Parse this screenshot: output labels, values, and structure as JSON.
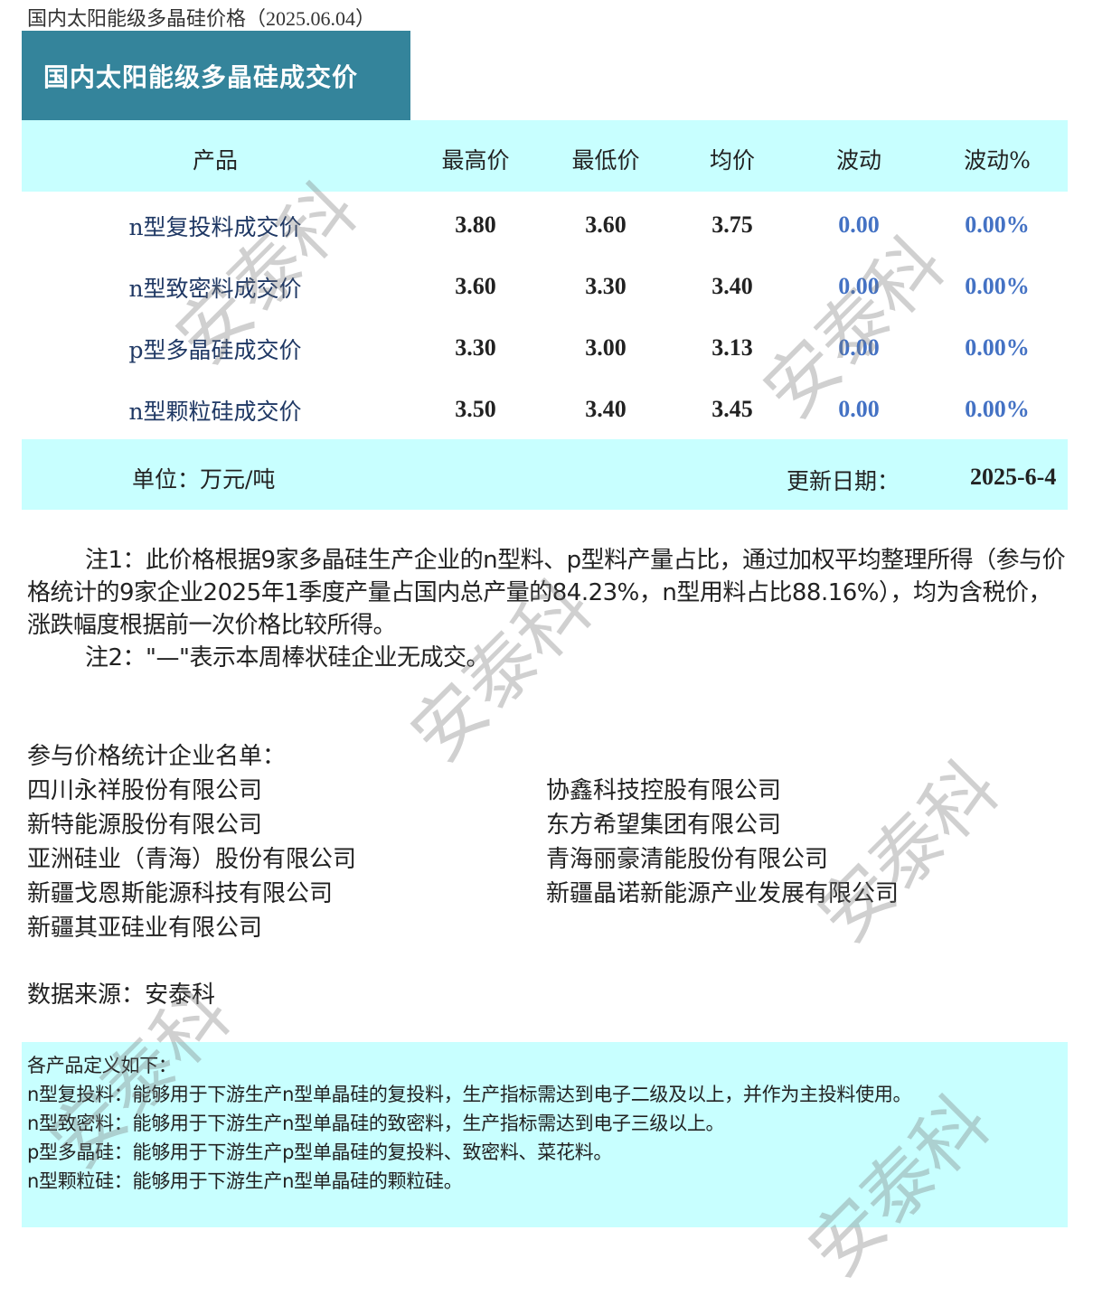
{
  "page_title": "国内太阳能级多晶硅价格（2025.06.04）",
  "banner": "国内太阳能级多晶硅成交价",
  "table": {
    "headers": [
      "产品",
      "最高价",
      "最低价",
      "均价",
      "波动",
      "波动%"
    ],
    "rows": [
      [
        "n型复投料成交价",
        "3.80",
        "3.60",
        "3.75",
        "0.00",
        "0.00%"
      ],
      [
        "n型致密料成交价",
        "3.60",
        "3.30",
        "3.40",
        "0.00",
        "0.00%"
      ],
      [
        "p型多晶硅成交价",
        "3.30",
        "3.00",
        "3.13",
        "0.00",
        "0.00%"
      ],
      [
        "n型颗粒硅成交价",
        "3.50",
        "3.40",
        "3.45",
        "0.00",
        "0.00%"
      ]
    ],
    "unit": "单位：万元/吨",
    "update_label": "更新日期：",
    "update_date": "2025-6-4"
  },
  "notes": [
    "注1：此价格根据9家多晶硅生产企业的n型料、p型料产量占比，通过加权平均整理所得（参与价格统计的9家企业2025年1季度产量占国内总产量的84.23%，n型用料占比88.16%），均为含税价，涨跌幅度根据前一次价格比较所得。",
    "注2：\"—\"表示本周棒状硅企业无成交。"
  ],
  "companies_title": "参与价格统计企业名单：",
  "companies_left": [
    "四川永祥股份有限公司",
    "新特能源股份有限公司",
    "亚洲硅业（青海）股份有限公司",
    "新疆戈恩斯能源科技有限公司",
    "新疆其亚硅业有限公司"
  ],
  "companies_right": [
    "协鑫科技控股有限公司",
    "东方希望集团有限公司",
    "青海丽豪清能股份有限公司",
    "新疆晶诺新能源产业发展有限公司"
  ],
  "source": "数据来源：安泰科",
  "definitions": [
    "各产品定义如下：",
    "n型复投料：能够用于下游生产n型单晶硅的复投料，生产指标需达到电子二级及以上，并作为主投料使用。",
    "n型致密料：能够用于下游生产n型单晶硅的致密料，生产指标需达到电子三级以上。",
    "p型多晶硅：能够用于下游生产p型单晶硅的复投料、致密料、菜花料。",
    "n型颗粒硅：能够用于下游生产n型单晶硅的颗粒硅。"
  ],
  "watermark": "安泰科",
  "colors": {
    "banner": "#34849b",
    "band": "#c8ffff",
    "change": "#4472c4",
    "product": "#1f3864"
  }
}
